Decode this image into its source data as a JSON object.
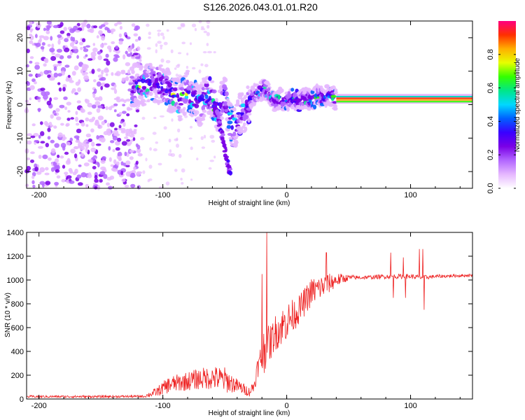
{
  "title": "S126.2026.043.01.01.R20",
  "chart_data": [
    {
      "type": "heatmap",
      "name": "spectrogram",
      "xlabel": "Height of straight line (km)",
      "ylabel": "Frequency (Hz)",
      "xlim": [
        -210,
        150
      ],
      "ylim": [
        -25,
        25
      ],
      "xticks": [
        -200,
        -100,
        0,
        100
      ],
      "xtick_labels": [
        "-200",
        "-100",
        "0",
        "100"
      ],
      "yticks": [
        -20,
        -10,
        0,
        10,
        20
      ],
      "ytick_labels": [
        "-20",
        "-10",
        "0",
        "10",
        "20"
      ],
      "colorbar": {
        "label": "Normalized spectral amplitude",
        "range": [
          0,
          1
        ],
        "ticks": [
          0.0,
          0.2,
          0.4,
          0.6,
          0.8
        ],
        "tick_labels": [
          "0.0",
          "0.2",
          "0.4",
          "0.6",
          "0.8"
        ],
        "colors": [
          "#ffffff",
          "#e6b8ff",
          "#b266ff",
          "#7a00e6",
          "#3a00ff",
          "#0060ff",
          "#00d8ff",
          "#00e68a",
          "#33ff00",
          "#e6ff00",
          "#ffb000",
          "#ff3000",
          "#ff0080"
        ]
      },
      "ridge": {
        "x": [
          -125,
          -115,
          -105,
          -98,
          -92,
          -86,
          -80,
          -75,
          -70,
          -65,
          -60,
          -55,
          -50,
          -46,
          -42,
          -38,
          -34,
          -30,
          -26,
          -22,
          -18,
          -14,
          -10,
          -6,
          0,
          5,
          10,
          15,
          20,
          25,
          30,
          35,
          40,
          50,
          60,
          70,
          80,
          90,
          100,
          103,
          105,
          108,
          112,
          120,
          130,
          140,
          150
        ],
        "y": [
          5,
          6,
          7,
          5,
          3,
          1,
          4,
          2,
          0,
          3,
          1,
          -2,
          3,
          -5,
          -7,
          -3,
          -2,
          1,
          3,
          4,
          5,
          3,
          1,
          2,
          1,
          2,
          1,
          2,
          1,
          3,
          2,
          3,
          1.5,
          1.5,
          1.5,
          1.5,
          1.5,
          1.5,
          1.5,
          3,
          0,
          1.5,
          1.5,
          1.5,
          1.5,
          1.5,
          1.5
        ]
      },
      "branch": {
        "x": [
          -58,
          -55,
          -52,
          -50,
          -48,
          -46,
          -45
        ],
        "y": [
          -1,
          -5,
          -9,
          -13,
          -17,
          -20,
          -21
        ]
      },
      "stable_band": {
        "x_range": [
          40,
          150
        ],
        "lines": [
          {
            "y": 2.4,
            "color": "#00d8c0"
          },
          {
            "y": 1.9,
            "color": "#ff3000"
          },
          {
            "y": 1.4,
            "color": "#ffb000"
          },
          {
            "y": 0.9,
            "color": "#33ff00"
          }
        ]
      },
      "noise_region": {
        "x_range": [
          -210,
          -118
        ],
        "y_range": [
          -25,
          25
        ]
      }
    },
    {
      "type": "line",
      "name": "snr",
      "xlabel": "Height of straight line (km)",
      "ylabel": "SNR (10 * v/v)",
      "xlim": [
        -210,
        150
      ],
      "ylim": [
        0,
        1400
      ],
      "xticks": [
        -200,
        -100,
        0,
        100
      ],
      "xtick_labels": [
        "-200",
        "-100",
        "0",
        "100"
      ],
      "yticks": [
        0,
        200,
        400,
        600,
        800,
        1000,
        1200,
        1400
      ],
      "ytick_labels": [
        "0",
        "200",
        "400",
        "600",
        "800",
        "1000",
        "1200",
        "1400"
      ],
      "color": "#ee2222",
      "envelope": {
        "x": [
          -210,
          -150,
          -115,
          -105,
          -95,
          -80,
          -70,
          -60,
          -50,
          -40,
          -30,
          -26,
          -24,
          -22,
          -20,
          -18,
          -16,
          -14,
          -12,
          -10,
          -5,
          0,
          10,
          20,
          30,
          40,
          50,
          60,
          80,
          100,
          110,
          120,
          150
        ],
        "mean": [
          20,
          20,
          22,
          60,
          120,
          150,
          170,
          180,
          160,
          110,
          60,
          120,
          250,
          300,
          350,
          400,
          500,
          450,
          500,
          550,
          600,
          650,
          750,
          900,
          950,
          1000,
          1020,
          1020,
          1030,
          1030,
          1020,
          1030,
          1040
        ],
        "noise": [
          10,
          10,
          10,
          40,
          70,
          80,
          90,
          100,
          110,
          60,
          40,
          60,
          80,
          100,
          200,
          220,
          150,
          150,
          150,
          150,
          160,
          160,
          120,
          120,
          100,
          60,
          25,
          15,
          20,
          20,
          20,
          15,
          12
        ]
      },
      "spikes": [
        {
          "x": -16,
          "y": 1400
        },
        {
          "x": -20,
          "y": 1050
        },
        {
          "x": 32,
          "y": 1230
        },
        {
          "x": 84,
          "y": 1230
        },
        {
          "x": 86,
          "y": 850
        },
        {
          "x": 94,
          "y": 1190
        },
        {
          "x": 96,
          "y": 850
        },
        {
          "x": 107,
          "y": 1260
        },
        {
          "x": 110,
          "y": 1260
        },
        {
          "x": 111,
          "y": 750
        }
      ]
    }
  ]
}
